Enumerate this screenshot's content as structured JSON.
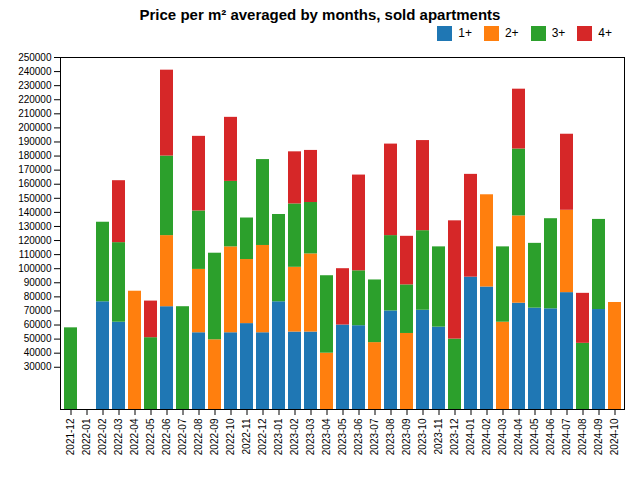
{
  "chart_data": {
    "type": "bar",
    "stacked": true,
    "title": "Price per m² averaged by months, sold apartments",
    "categories": [
      "2021-12",
      "2022-01",
      "2022-02",
      "2022-03",
      "2022-04",
      "2022-05",
      "2022-06",
      "2022-07",
      "2022-08",
      "2022-09",
      "2022-10",
      "2022-11",
      "2022-12",
      "2023-01",
      "2023-02",
      "2023-03",
      "2023-04",
      "2023-05",
      "2023-06",
      "2023-07",
      "2023-08",
      "2023-09",
      "2023-10",
      "2023-11",
      "2023-12",
      "2024-01",
      "2024-02",
      "2024-03",
      "2024-04",
      "2024-05",
      "2024-06",
      "2024-07",
      "2024-08",
      "2024-09",
      "2024-10"
    ],
    "series": [
      {
        "name": "1+",
        "color": "#1f77b4",
        "values": [
          0,
          0,
          76500,
          62000,
          0,
          0,
          73000,
          0,
          54500,
          0,
          54500,
          61000,
          54500,
          76500,
          55000,
          55000,
          0,
          60000,
          59500,
          0,
          70000,
          0,
          70500,
          58500,
          0,
          94000,
          87000,
          0,
          75500,
          72000,
          71500,
          83000,
          0,
          71000,
          0
        ]
      },
      {
        "name": "2+",
        "color": "#ff7f0e",
        "values": [
          0,
          0,
          0,
          0,
          84000,
          0,
          50500,
          0,
          45000,
          49500,
          61000,
          45500,
          62000,
          0,
          46000,
          55500,
          40000,
          0,
          0,
          47500,
          0,
          54000,
          0,
          0,
          0,
          0,
          65500,
          62000,
          62000,
          0,
          0,
          58500,
          0,
          0,
          76000
        ]
      },
      {
        "name": "3+",
        "color": "#2ca02c",
        "values": [
          58000,
          0,
          56500,
          56500,
          0,
          51000,
          56500,
          73000,
          41500,
          61500,
          46500,
          29500,
          61000,
          62000,
          45000,
          36500,
          55000,
          0,
          39000,
          44500,
          53500,
          34500,
          56500,
          57000,
          50000,
          0,
          0,
          53500,
          47500,
          46000,
          64000,
          0,
          47000,
          64000,
          0
        ]
      },
      {
        "name": "4+",
        "color": "#d62728",
        "values": [
          0,
          0,
          0,
          44000,
          0,
          26000,
          61000,
          0,
          53000,
          0,
          45500,
          0,
          0,
          0,
          37000,
          37000,
          0,
          40000,
          68000,
          0,
          65000,
          34500,
          64000,
          0,
          84000,
          73000,
          0,
          0,
          42500,
          0,
          0,
          54000,
          35500,
          0,
          0
        ]
      }
    ],
    "ylim": [
      0,
      250000
    ],
    "yticks": [
      30000,
      40000,
      50000,
      60000,
      70000,
      80000,
      90000,
      100000,
      110000,
      120000,
      130000,
      140000,
      150000,
      160000,
      170000,
      180000,
      190000,
      200000,
      210000,
      220000,
      230000,
      240000,
      250000
    ],
    "grid": false,
    "legend": "upper right"
  }
}
